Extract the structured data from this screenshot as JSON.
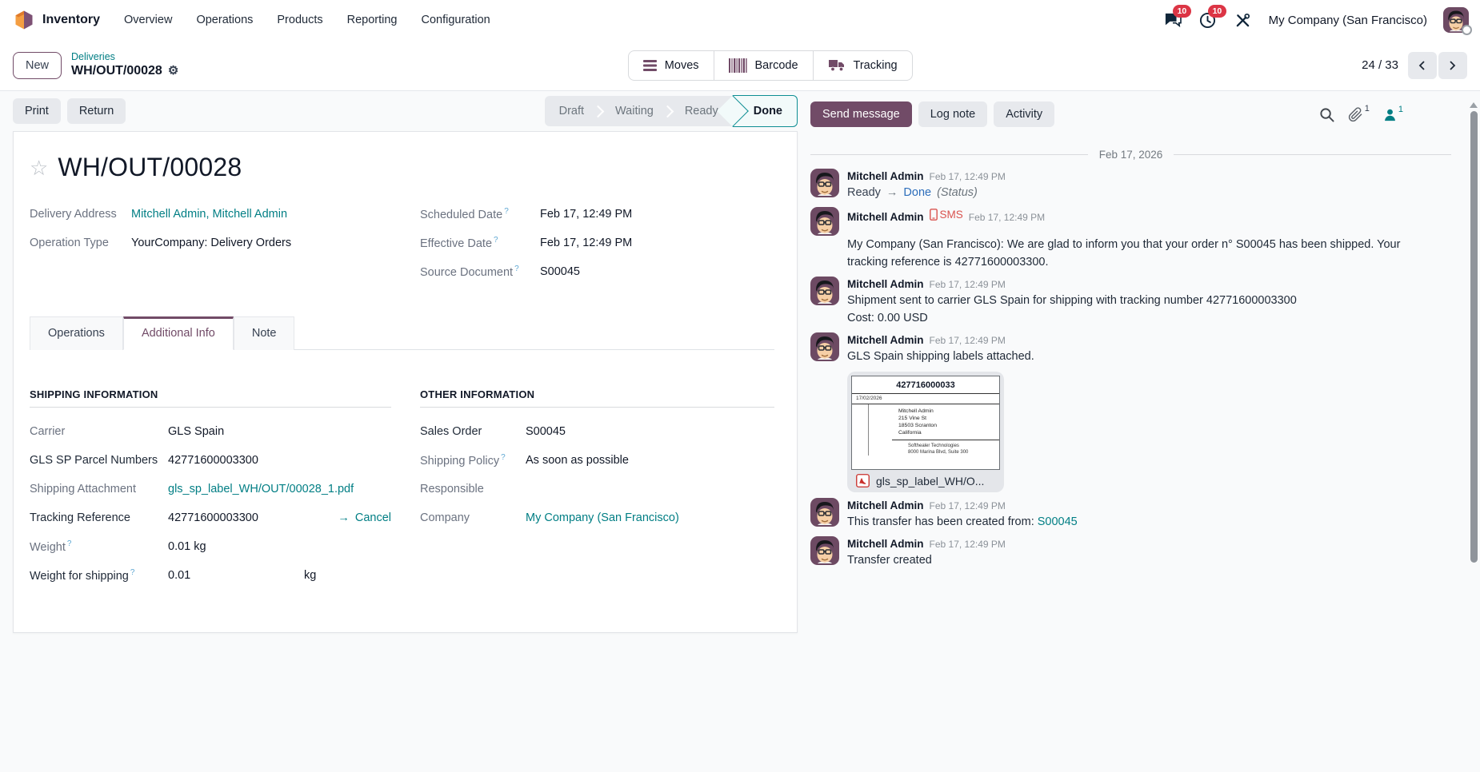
{
  "colors": {
    "accent": "#714B67",
    "link": "#017E84",
    "danger": "#D9534F",
    "done_border": "#0D8E93",
    "tracking_new": "#2D6EBB"
  },
  "navbar": {
    "app": "Inventory",
    "menus": [
      "Overview",
      "Operations",
      "Products",
      "Reporting",
      "Configuration"
    ],
    "messages_badge": "10",
    "activities_badge": "10",
    "company": "My Company (San Francisco)"
  },
  "control": {
    "new_label": "New",
    "breadcrumb_parent": "Deliveries",
    "breadcrumb_current": "WH/OUT/00028",
    "smart_buttons": [
      "Moves",
      "Barcode",
      "Tracking"
    ],
    "pager": "24 / 33"
  },
  "action_bar": {
    "print": "Print",
    "return": "Return",
    "statusbar": {
      "steps": [
        "Draft",
        "Waiting",
        "Ready"
      ],
      "done": "Done"
    }
  },
  "form": {
    "title": "WH/OUT/00028",
    "help_marker": "?",
    "header_fields": {
      "delivery_address_label": "Delivery Address",
      "delivery_address": "Mitchell Admin, Mitchell Admin",
      "operation_type_label": "Operation Type",
      "operation_type": "YourCompany: Delivery Orders",
      "scheduled_date_label": "Scheduled Date",
      "scheduled_date": "Feb 17, 12:49 PM",
      "effective_date_label": "Effective Date",
      "effective_date": "Feb 17, 12:49 PM",
      "source_document_label": "Source Document",
      "source_document": "S00045"
    },
    "tabs": [
      "Operations",
      "Additional Info",
      "Note"
    ],
    "shipping_info": {
      "heading": "SHIPPING INFORMATION",
      "carrier_label": "Carrier",
      "carrier": "GLS Spain",
      "parcel_label": "GLS SP Parcel Numbers",
      "parcel": "42771600003300",
      "attachment_label": "Shipping Attachment",
      "attachment": "gls_sp_label_WH/OUT/00028_1.pdf",
      "tracking_label": "Tracking Reference",
      "tracking": "42771600003300",
      "cancel_label": "Cancel",
      "weight_label": "Weight",
      "weight": "0.01",
      "weight_unit": "kg",
      "weight_shipping_label": "Weight for shipping",
      "weight_shipping": "0.01",
      "weight_shipping_unit": "kg"
    },
    "other_info": {
      "heading": "OTHER INFORMATION",
      "sales_order_label": "Sales Order",
      "sales_order": "S00045",
      "shipping_policy_label": "Shipping Policy",
      "shipping_policy": "As soon as possible",
      "responsible_label": "Responsible",
      "company_label": "Company",
      "company": "My Company (San Francisco)"
    }
  },
  "chatter": {
    "send": "Send message",
    "log": "Log note",
    "activity": "Activity",
    "attachments_count": "1",
    "followers_count": "1",
    "date_divider": "Feb 17, 2026",
    "messages": [
      {
        "author": "Mitchell Admin",
        "time": "Feb 17, 12:49 PM",
        "tracking_from": "Ready",
        "tracking_to": "Done",
        "tracking_field": "(Status)"
      },
      {
        "author": "Mitchell Admin",
        "tag": "SMS",
        "time": "Feb 17, 12:49 PM",
        "body": "My Company (San Francisco): We are glad to inform you that your order n° S00045 has been shipped. Your tracking reference is 42771600003300."
      },
      {
        "author": "Mitchell Admin",
        "time": "Feb 17, 12:49 PM",
        "body": "Shipment sent to carrier GLS Spain for shipping with tracking number 42771600003300",
        "body2": "Cost: 0.00 USD"
      },
      {
        "author": "Mitchell Admin",
        "time": "Feb 17, 12:49 PM",
        "body": "GLS Spain shipping labels attached.",
        "attachment": {
          "filename": "gls_sp_label_WH/O...",
          "label": {
            "number": "427716000033",
            "date": "17/02/2026",
            "recipient": [
              "Mitchell Admin",
              "215 Vine St",
              "18503 Scranton",
              "California"
            ],
            "sender": [
              "Softhealer Technologies",
              "8000 Marina Blvd, Suite 300"
            ]
          }
        }
      },
      {
        "author": "Mitchell Admin",
        "time": "Feb 17, 12:49 PM",
        "body": "This transfer has been created from: ",
        "link": "S00045"
      },
      {
        "author": "Mitchell Admin",
        "time": "Feb 17, 12:49 PM",
        "body": "Transfer created"
      }
    ]
  }
}
